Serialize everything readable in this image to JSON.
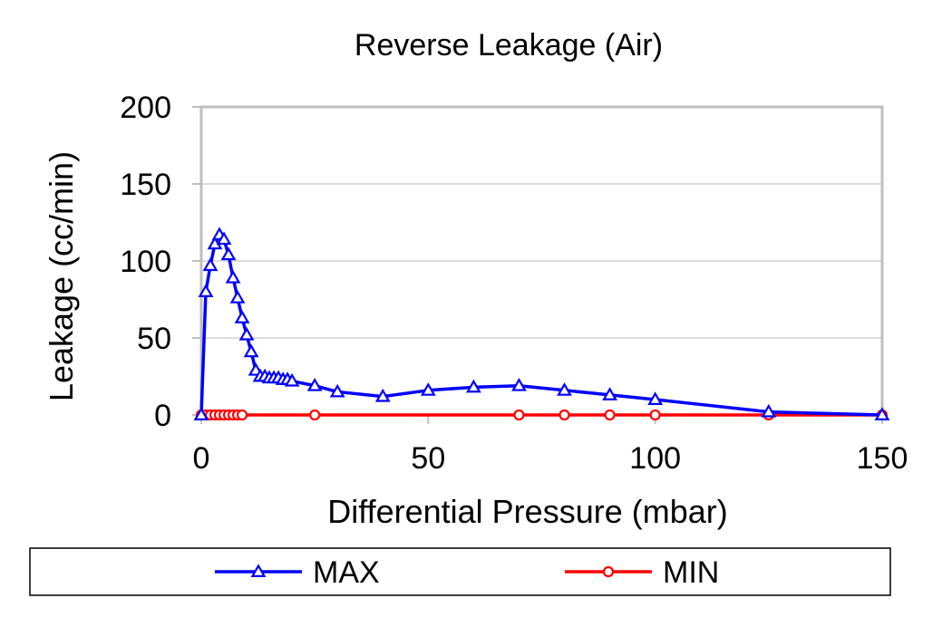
{
  "chart_data": {
    "type": "line",
    "title": "Reverse Leakage (Air)",
    "xlabel": "Differential Pressure (mbar)",
    "ylabel": "Leakage (cc/min)",
    "xlim": [
      0,
      150
    ],
    "ylim": [
      0,
      200
    ],
    "xticks": [
      "0",
      "50",
      "100",
      "150"
    ],
    "yticks": [
      "0",
      "50",
      "100",
      "150",
      "200"
    ],
    "grid": "horizontal",
    "legend_position": "bottom",
    "series": [
      {
        "name": "MAX",
        "color": "#0000ff",
        "marker": "triangle",
        "x": [
          0,
          1,
          2,
          3,
          4,
          5,
          6,
          7,
          8,
          9,
          10,
          11,
          12,
          13,
          14,
          15,
          16,
          17,
          18,
          19,
          20,
          25,
          30,
          40,
          50,
          60,
          70,
          80,
          90,
          100,
          125,
          150
        ],
        "y": [
          0,
          80,
          97,
          111,
          117,
          114,
          104,
          89,
          76,
          63,
          52,
          41,
          29,
          25,
          25,
          24,
          24,
          24,
          23,
          23,
          22,
          19,
          15,
          12,
          16,
          18,
          19,
          16,
          13,
          10,
          2,
          0
        ]
      },
      {
        "name": "MIN",
        "color": "#ff0000",
        "marker": "circle",
        "x": [
          0,
          1,
          2,
          3,
          4,
          5,
          6,
          7,
          8,
          9,
          25,
          70,
          80,
          90,
          100,
          125,
          150
        ],
        "y": [
          0,
          0,
          0,
          0,
          0,
          0,
          0,
          0,
          0,
          0,
          0,
          0,
          0,
          0,
          0,
          0,
          0
        ]
      }
    ]
  }
}
